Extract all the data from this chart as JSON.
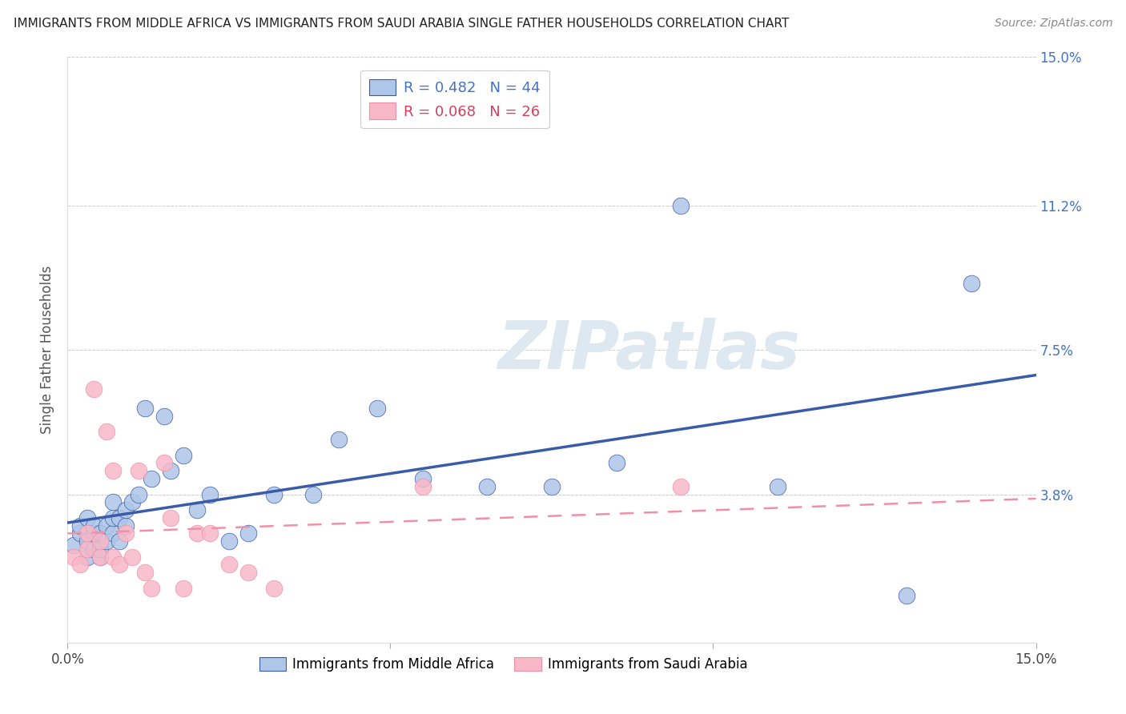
{
  "title": "IMMIGRANTS FROM MIDDLE AFRICA VS IMMIGRANTS FROM SAUDI ARABIA SINGLE FATHER HOUSEHOLDS CORRELATION CHART",
  "source": "Source: ZipAtlas.com",
  "ylabel": "Single Father Households",
  "xlim": [
    0.0,
    0.15
  ],
  "ylim": [
    0.0,
    0.15
  ],
  "ytick_vals": [
    0.0,
    0.038,
    0.075,
    0.112,
    0.15
  ],
  "ytick_labels": [
    "",
    "3.8%",
    "7.5%",
    "11.2%",
    "15.0%"
  ],
  "xtick_vals": [
    0.0,
    0.05,
    0.1,
    0.15
  ],
  "xtick_labels": [
    "0.0%",
    "",
    "",
    "15.0%"
  ],
  "blue_R": 0.482,
  "blue_N": 44,
  "pink_R": 0.068,
  "pink_N": 26,
  "blue_scatter_color": "#aec6e8",
  "pink_scatter_color": "#f9b8c8",
  "blue_line_color": "#3a5ca8",
  "pink_line_color": "#f090a8",
  "legend_blue_color": "#4472c4",
  "legend_pink_color": "#d44060",
  "watermark_color": "#dde8f0",
  "grid_color": "#cccccc",
  "blue_x": [
    0.001,
    0.002,
    0.002,
    0.003,
    0.003,
    0.003,
    0.004,
    0.004,
    0.004,
    0.005,
    0.005,
    0.005,
    0.006,
    0.006,
    0.007,
    0.007,
    0.007,
    0.008,
    0.008,
    0.009,
    0.009,
    0.01,
    0.011,
    0.012,
    0.013,
    0.015,
    0.016,
    0.018,
    0.02,
    0.022,
    0.025,
    0.028,
    0.032,
    0.038,
    0.042,
    0.048,
    0.055,
    0.065,
    0.075,
    0.085,
    0.095,
    0.11,
    0.13,
    0.14
  ],
  "blue_y": [
    0.025,
    0.028,
    0.03,
    0.022,
    0.026,
    0.032,
    0.024,
    0.028,
    0.03,
    0.022,
    0.024,
    0.028,
    0.026,
    0.03,
    0.028,
    0.032,
    0.036,
    0.026,
    0.032,
    0.03,
    0.034,
    0.036,
    0.038,
    0.06,
    0.042,
    0.058,
    0.044,
    0.048,
    0.034,
    0.038,
    0.026,
    0.028,
    0.038,
    0.038,
    0.052,
    0.06,
    0.042,
    0.04,
    0.04,
    0.046,
    0.112,
    0.04,
    0.012,
    0.092
  ],
  "pink_x": [
    0.001,
    0.002,
    0.003,
    0.003,
    0.004,
    0.005,
    0.005,
    0.006,
    0.007,
    0.007,
    0.008,
    0.009,
    0.01,
    0.011,
    0.012,
    0.013,
    0.015,
    0.016,
    0.018,
    0.02,
    0.022,
    0.025,
    0.028,
    0.032,
    0.055,
    0.095
  ],
  "pink_y": [
    0.022,
    0.02,
    0.024,
    0.028,
    0.065,
    0.022,
    0.026,
    0.054,
    0.022,
    0.044,
    0.02,
    0.028,
    0.022,
    0.044,
    0.018,
    0.014,
    0.046,
    0.032,
    0.014,
    0.028,
    0.028,
    0.02,
    0.018,
    0.014,
    0.04,
    0.04
  ]
}
